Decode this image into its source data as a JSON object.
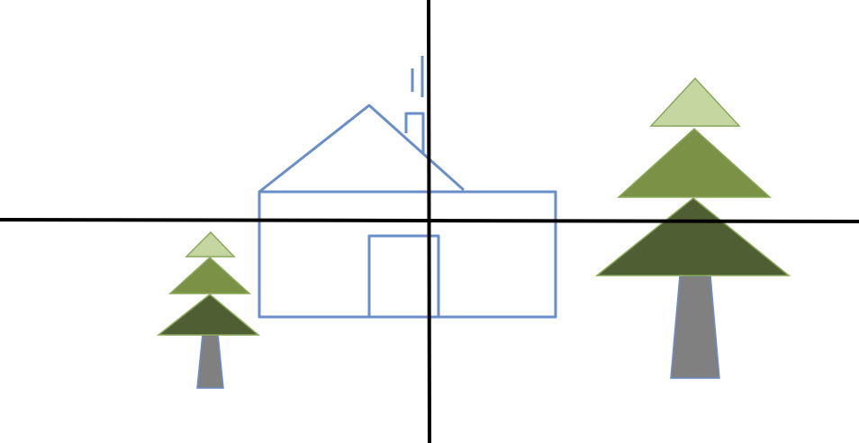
{
  "colors": {
    "background": "#ffffff",
    "axis": "#000000",
    "house_outline": "#6a8ec8",
    "tree_top_light": "#c5d6a0",
    "tree_mid": "#7a9146",
    "tree_bottom_dark": "#4f5f33",
    "tree_outline": "#8aa85a",
    "trunk": "#808080",
    "trunk_outline": "#6a8ec8"
  },
  "scene": {
    "elements": [
      "coordinate-axes",
      "house",
      "small-tree",
      "large-tree"
    ]
  }
}
